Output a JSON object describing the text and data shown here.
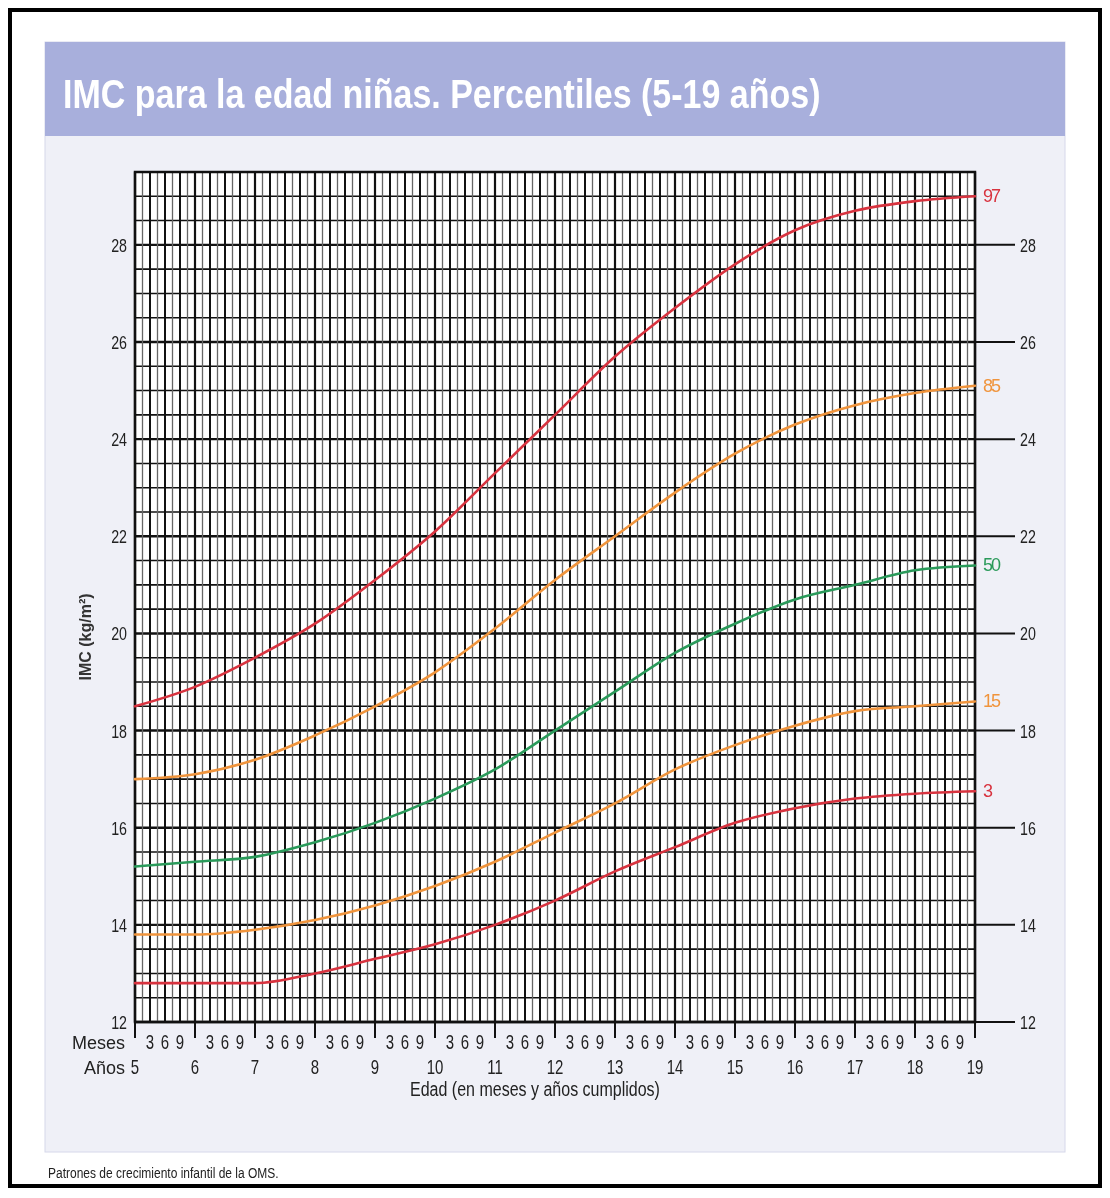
{
  "chart_data": {
    "type": "line",
    "title": "IMC para la edad niñas. Percentiles (5-19 años)",
    "xlabel": "Edad (en meses y años cumplidos)",
    "ylabel": "IMC (kg/m²)",
    "x": [
      5,
      6,
      7,
      8,
      9,
      10,
      11,
      12,
      13,
      14,
      15,
      16,
      17,
      18,
      19
    ],
    "series": [
      {
        "name": "97",
        "color": "#d8333f",
        "values": [
          18.5,
          18.9,
          19.5,
          20.2,
          21.1,
          22.1,
          23.3,
          24.5,
          25.7,
          26.7,
          27.6,
          28.3,
          28.7,
          28.9,
          29.0
        ]
      },
      {
        "name": "85",
        "color": "#f0943c",
        "values": [
          17.0,
          17.1,
          17.4,
          17.9,
          18.5,
          19.2,
          20.1,
          21.1,
          22.0,
          22.9,
          23.7,
          24.3,
          24.7,
          24.95,
          25.1
        ]
      },
      {
        "name": "50",
        "color": "#2a9a5a",
        "values": [
          15.2,
          15.3,
          15.4,
          15.7,
          16.1,
          16.6,
          17.2,
          18.0,
          18.8,
          19.6,
          20.2,
          20.7,
          21.0,
          21.3,
          21.4
        ]
      },
      {
        "name": "15",
        "color": "#f0943c",
        "values": [
          13.8,
          13.8,
          13.9,
          14.1,
          14.4,
          14.8,
          15.3,
          15.9,
          16.5,
          17.2,
          17.7,
          18.1,
          18.4,
          18.5,
          18.6
        ]
      },
      {
        "name": "3",
        "color": "#d8333f",
        "values": [
          12.8,
          12.8,
          12.8,
          13.0,
          13.3,
          13.6,
          14.0,
          14.5,
          15.1,
          15.6,
          16.1,
          16.4,
          16.6,
          16.7,
          16.75
        ]
      }
    ],
    "xlim": [
      5,
      19
    ],
    "xticks": [
      5,
      6,
      7,
      8,
      9,
      10,
      11,
      12,
      13,
      14,
      15,
      16,
      17,
      18,
      19
    ],
    "ylim": [
      12,
      29.5
    ],
    "yticks": [
      12,
      14,
      16,
      18,
      20,
      22,
      24,
      26,
      28
    ],
    "y2lim": [
      12,
      29.5
    ],
    "y2ticks": [
      12,
      14,
      16,
      18,
      20,
      22,
      24,
      26,
      28
    ],
    "grid": true,
    "marker": "none",
    "line_style": "solid",
    "annotations": [
      "Meses",
      "Años",
      "Patrones de crecimiento infantil de la OMS.",
      "3",
      "6",
      "9",
      "3",
      "6",
      "9",
      "3",
      "6",
      "9",
      "3",
      "6",
      "9",
      "3",
      "6",
      "9",
      "3",
      "6",
      "9",
      "3",
      "6",
      "9",
      "3",
      "6",
      "9",
      "3",
      "6",
      "9",
      "3",
      "6",
      "9",
      "3",
      "6",
      "9",
      "3",
      "6",
      "9",
      "3",
      "6",
      "9",
      "3",
      "6",
      "9"
    ]
  }
}
